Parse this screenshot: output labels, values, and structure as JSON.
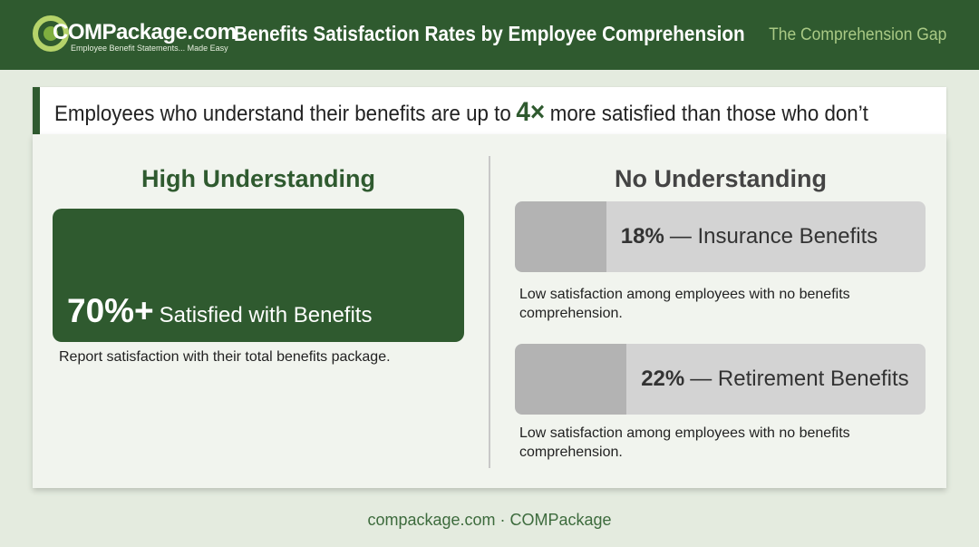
{
  "header": {
    "logo": {
      "name": "COMPackage.com",
      "tagline": "Employee Benefit Statements... Made Easy"
    },
    "title": "Benefits Satisfaction Rates by Employee Comprehension",
    "tag": "The Comprehension Gap"
  },
  "banner": {
    "before": "Employees who understand their benefits are up to",
    "highlight": "4×",
    "after": "more satisfied than those who don’t"
  },
  "high": {
    "heading": "High Understanding",
    "stat": "70%+",
    "stat_label": "Satisfied with Benefits",
    "caption": "Report satisfaction with their total benefits package."
  },
  "none": {
    "heading": "No Understanding",
    "bars": [
      {
        "value": 18,
        "label": "18%",
        "text": "— Insurance Benefits",
        "caption": "Low satisfaction among employees with no benefits comprehension."
      },
      {
        "value": 22,
        "label": "22%",
        "text": "— Retirement Benefits",
        "caption": "Low satisfaction among employees with no benefits comprehension."
      }
    ]
  },
  "footer": "compackage.com · COMPackage"
}
